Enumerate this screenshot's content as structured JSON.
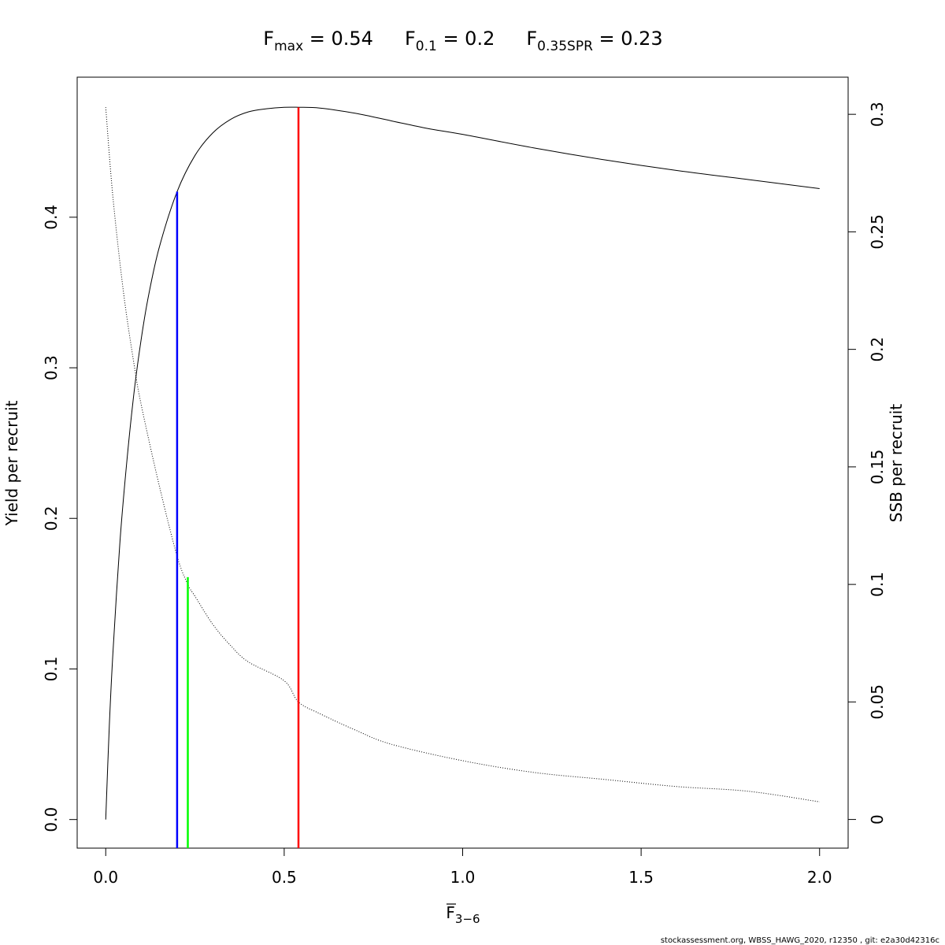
{
  "chart_data": {
    "type": "line",
    "title_parts": [
      {
        "main": "F",
        "sub": "max",
        "rest": " = 0.54"
      },
      {
        "main": "F",
        "sub": "0.1",
        "rest": " = 0.2"
      },
      {
        "main": "F",
        "sub": "0.35SPR",
        "rest": " = 0.23"
      }
    ],
    "xlabel": {
      "main": "F",
      "sub": "3−6",
      "overline": true
    },
    "ylabel_left": "Yield per recruit",
    "ylabel_right": "SSB per recruit",
    "xlim": [
      -0.08,
      2.08
    ],
    "ylim_left": [
      -0.019,
      0.493
    ],
    "ylim_right": [
      -0.0122,
      0.3158
    ],
    "x_ticks": [
      {
        "value": 0.0,
        "label": "0.0"
      },
      {
        "value": 0.5,
        "label": "0.5"
      },
      {
        "value": 1.0,
        "label": "1.0"
      },
      {
        "value": 1.5,
        "label": "1.5"
      },
      {
        "value": 2.0,
        "label": "2.0"
      }
    ],
    "y_left_ticks": [
      {
        "value": 0.0,
        "label": "0.0"
      },
      {
        "value": 0.1,
        "label": "0.1"
      },
      {
        "value": 0.2,
        "label": "0.2"
      },
      {
        "value": 0.3,
        "label": "0.3"
      },
      {
        "value": 0.4,
        "label": "0.4"
      }
    ],
    "y_right_ticks": [
      {
        "value": 0.0,
        "label": "0"
      },
      {
        "value": 0.05,
        "label": "0.05"
      },
      {
        "value": 0.1,
        "label": "0.1"
      },
      {
        "value": 0.15,
        "label": "0.15"
      },
      {
        "value": 0.2,
        "label": "0.2"
      },
      {
        "value": 0.25,
        "label": "0.25"
      },
      {
        "value": 0.3,
        "label": "0.3"
      }
    ],
    "series": [
      {
        "axis": "left",
        "style": "solid",
        "color": "#000000",
        "x": [
          0.0,
          0.01,
          0.02,
          0.04,
          0.06,
          0.08,
          0.1,
          0.12,
          0.15,
          0.2,
          0.25,
          0.3,
          0.35,
          0.4,
          0.45,
          0.5,
          0.54,
          0.6,
          0.7,
          0.8,
          0.9,
          1.0,
          1.2,
          1.4,
          1.6,
          1.8,
          2.0
        ],
        "values": [
          0.0,
          0.062,
          0.11,
          0.185,
          0.24,
          0.285,
          0.32,
          0.348,
          0.38,
          0.417,
          0.441,
          0.456,
          0.465,
          0.47,
          0.472,
          0.473,
          0.473,
          0.4725,
          0.469,
          0.464,
          0.459,
          0.455,
          0.446,
          0.438,
          0.431,
          0.425,
          0.419
        ]
      },
      {
        "axis": "right",
        "style": "dotted",
        "color": "#000000",
        "x": [
          0.0,
          0.02,
          0.05,
          0.08,
          0.1,
          0.15,
          0.2,
          0.23,
          0.25,
          0.3,
          0.35,
          0.4,
          0.5,
          0.54,
          0.6,
          0.7,
          0.8,
          1.0,
          1.2,
          1.4,
          1.6,
          1.8,
          2.0
        ],
        "values": [
          0.303,
          0.265,
          0.224,
          0.193,
          0.176,
          0.142,
          0.112,
          0.1,
          0.095,
          0.083,
          0.074,
          0.067,
          0.059,
          0.05,
          0.045,
          0.038,
          0.032,
          0.025,
          0.02,
          0.017,
          0.014,
          0.012,
          0.0075
        ]
      }
    ],
    "reference_lines": [
      {
        "name": "F0.1",
        "x": 0.2,
        "y_top": 0.417,
        "color": "#0000ff"
      },
      {
        "name": "F0.35SPR",
        "x": 0.23,
        "y_top": 0.161,
        "color": "#00ff00"
      },
      {
        "name": "Fmax",
        "x": 0.54,
        "y_top": 0.473,
        "color": "#ff0000"
      }
    ],
    "grid": false,
    "legend": "none"
  },
  "footer": "stockassessment.org, WBSS_HAWG_2020, r12350 , git: e2a30d42316c"
}
